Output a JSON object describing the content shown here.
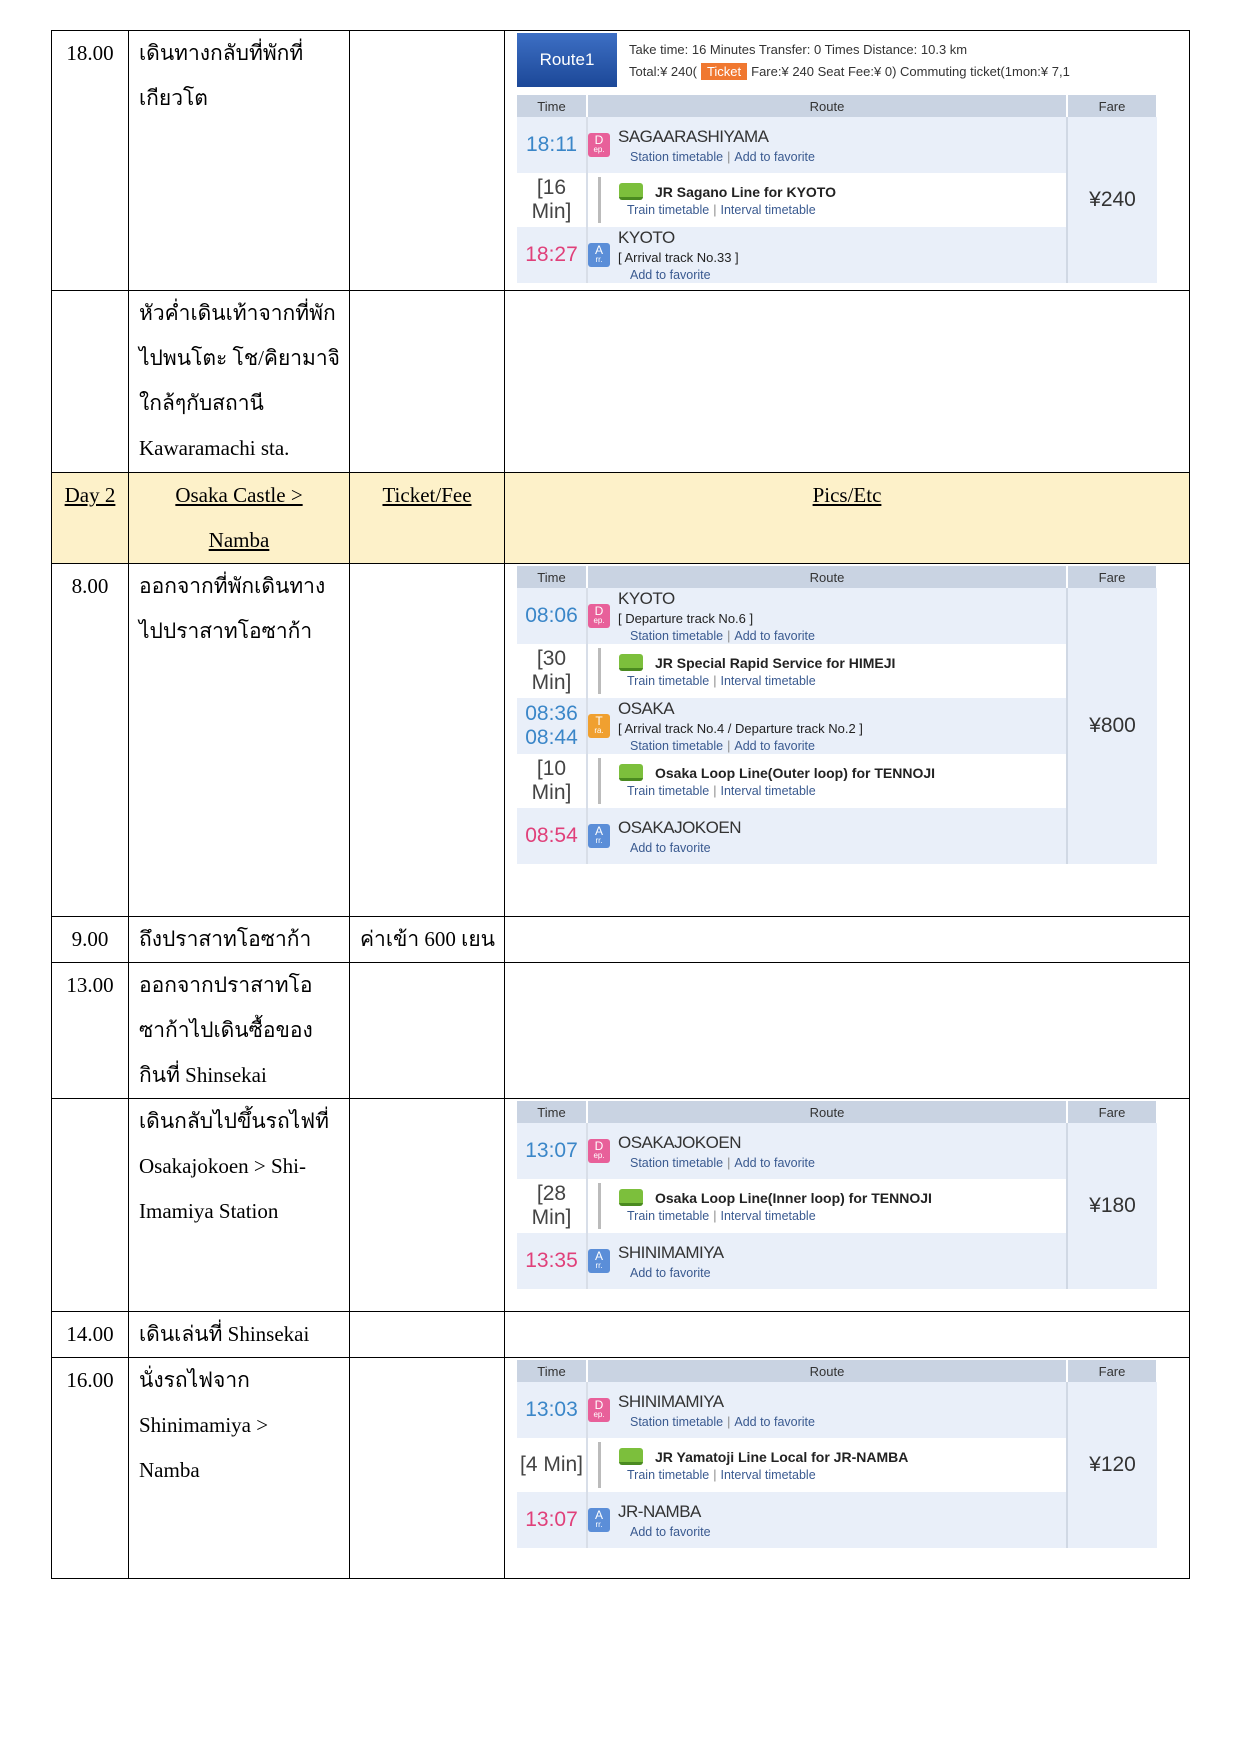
{
  "route_columns": [
    "Time",
    "Route",
    "Fare"
  ],
  "rows": [
    {
      "time": "18.00",
      "activity": [
        "เดินทางกลับที่พักที่",
        "เกียวโต"
      ],
      "route": {
        "header": {
          "name": "Route1",
          "info": "Take time: 16 Minutes  Transfer: 0 Times  Distance: 10.3 km",
          "total": "Total:¥ 240(",
          "ticket": "Ticket",
          "rest": "Fare:¥ 240  Seat Fee:¥ 0)  Commuting ticket(1mon:¥ 7,1"
        },
        "fare": "¥240",
        "items": [
          {
            "kind": "dep",
            "times": [
              "18:11"
            ],
            "badge": [
              "D",
              "ep."
            ],
            "name": "SAGAARASHIYAMA",
            "links": [
              "Station timetable",
              "Add to favorite"
            ]
          },
          {
            "kind": "seg",
            "duration": "[16 Min]",
            "line": "JR Sagano Line  for KYOTO",
            "links": [
              "Train timetable",
              "Interval timetable"
            ]
          },
          {
            "kind": "arr",
            "times": [
              "18:27"
            ],
            "badge": [
              "A",
              "rr."
            ],
            "name": "KYOTO",
            "track": "[ Arrival track No.33 ]",
            "links": [
              "Add to favorite"
            ]
          }
        ]
      }
    },
    {
      "activity": [
        "หัวค่ำเดินเท้าจากที่พัก",
        "ไปพนโตะ โช/คิยามาจิ",
        "ใกล้ๆกับสถานี",
        "Kawaramachi sta."
      ]
    },
    {
      "header": true,
      "time": "Day 2",
      "activity": [
        "Osaka Castle >",
        "Namba"
      ],
      "ticket": "Ticket/Fee",
      "pics": "Pics/Etc"
    },
    {
      "time": "8.00",
      "activity": [
        "ออกจากที่พักเดินทาง",
        "ไปปราสาทโอซาก้า"
      ],
      "route": {
        "fare": "¥800",
        "items": [
          {
            "kind": "dep",
            "times": [
              "08:06"
            ],
            "badge": [
              "D",
              "ep."
            ],
            "name": "KYOTO",
            "track": "[ Departure track No.6 ]",
            "links": [
              "Station timetable",
              "Add to favorite"
            ]
          },
          {
            "kind": "seg",
            "duration": "[30 Min]",
            "line": "JR Special Rapid Service  for HIMEJI",
            "links": [
              "Train timetable",
              "Interval timetable"
            ]
          },
          {
            "kind": "tra",
            "times": [
              "08:36",
              "08:44"
            ],
            "badge": [
              "T",
              "ra."
            ],
            "name": "OSAKA",
            "track": "[ Arrival track No.4 / Departure track No.2 ]",
            "links": [
              "Station timetable",
              "Add to favorite"
            ]
          },
          {
            "kind": "seg",
            "duration": "[10 Min]",
            "line": "Osaka Loop Line(Outer loop)  for TENNOJI",
            "links": [
              "Train timetable",
              "Interval timetable"
            ]
          },
          {
            "kind": "arr",
            "times": [
              "08:54"
            ],
            "badge": [
              "A",
              "rr."
            ],
            "name": "OSAKAJOKOEN",
            "links": [
              "Add to favorite"
            ]
          }
        ]
      }
    },
    {
      "time": "9.00",
      "activity": [
        "ถึงปราสาทโอซาก้า"
      ],
      "ticket": "ค่าเข้า 600 เยน"
    },
    {
      "time": "13.00",
      "activity": [
        "ออกจากปราสาทโอ",
        "ซาก้าไปเดินซื้อของ",
        "กินที่ Shinsekai"
      ]
    },
    {
      "activity": [
        "เดินกลับไปขึ้นรถไฟที่",
        "Osakajokoen > Shi-",
        "Imamiya Station"
      ],
      "route": {
        "fare": "¥180",
        "items": [
          {
            "kind": "dep",
            "times": [
              "13:07"
            ],
            "badge": [
              "D",
              "ep."
            ],
            "name": "OSAKAJOKOEN",
            "links": [
              "Station timetable",
              "Add to favorite"
            ]
          },
          {
            "kind": "seg",
            "duration": "[28 Min]",
            "line": "Osaka Loop Line(Inner loop)  for TENNOJI",
            "links": [
              "Train timetable",
              "Interval timetable"
            ]
          },
          {
            "kind": "arr",
            "times": [
              "13:35"
            ],
            "badge": [
              "A",
              "rr."
            ],
            "name": "SHINIMAMIYA",
            "links": [
              "Add to favorite"
            ]
          }
        ]
      }
    },
    {
      "time": "14.00",
      "activity": [
        "เดินเล่นที่ Shinsekai"
      ]
    },
    {
      "time": "16.00",
      "activity": [
        "นั่งรถไฟจาก",
        "Shinimamiya >",
        "Namba"
      ],
      "route": {
        "fare": "¥120",
        "items": [
          {
            "kind": "dep",
            "times": [
              "13:03"
            ],
            "badge": [
              "D",
              "ep."
            ],
            "name": "SHINIMAMIYA",
            "links": [
              "Station timetable",
              "Add to favorite"
            ]
          },
          {
            "kind": "seg",
            "duration": "[4 Min]",
            "line": "JR Yamatoji Line Local  for JR-NAMBA",
            "links": [
              "Train timetable",
              "Interval timetable"
            ]
          },
          {
            "kind": "arr",
            "times": [
              "13:07"
            ],
            "badge": [
              "A",
              "rr."
            ],
            "name": "JR-NAMBA",
            "links": [
              "Add to favorite"
            ]
          }
        ]
      }
    }
  ]
}
